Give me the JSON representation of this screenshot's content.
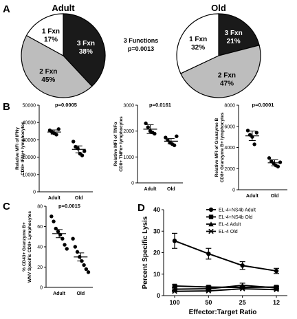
{
  "panels": {
    "A": "A",
    "B": "B",
    "C": "C",
    "D": "D"
  },
  "middle_text": {
    "functions": "3 Functions",
    "p": "p=0.0013"
  },
  "chart_data": [
    {
      "id": "A-adult",
      "type": "pie",
      "title": "Adult",
      "slices": [
        {
          "label": "3 Fxn",
          "value": 38,
          "pct": "38%",
          "color": "#1a1a1a",
          "text_color": "#ffffff"
        },
        {
          "label": "2 Fxn",
          "value": 45,
          "pct": "45%",
          "color": "#bdbdbd",
          "text_color": "#000000"
        },
        {
          "label": "1 Fxn",
          "value": 17,
          "pct": "17%",
          "color": "#ffffff",
          "text_color": "#000000"
        }
      ]
    },
    {
      "id": "A-old",
      "type": "pie",
      "title": "Old",
      "slices": [
        {
          "label": "3 Fxn",
          "value": 21,
          "pct": "21%",
          "color": "#1a1a1a",
          "text_color": "#ffffff"
        },
        {
          "label": "2 Fxn",
          "value": 47,
          "pct": "47%",
          "color": "#bdbdbd",
          "text_color": "#000000"
        },
        {
          "label": "1 Fxn",
          "value": 32,
          "pct": "32%",
          "color": "#ffffff",
          "text_color": "#000000"
        }
      ]
    },
    {
      "id": "B1",
      "type": "scatter",
      "p": "p=0.0005",
      "ylabel": [
        "Relative MFI of IFNγ",
        "CD8+ IFNγ+ lymphocytes"
      ],
      "ylim": [
        0,
        50000
      ],
      "yticks": [
        "0",
        "10000",
        "20000",
        "30000",
        "40000",
        "50000"
      ],
      "ytick_vals": [
        0,
        10000,
        20000,
        30000,
        40000,
        50000
      ],
      "categories": [
        "Adult",
        "Old"
      ],
      "groups": [
        {
          "points": [
            35500,
            34500,
            33800,
            33000,
            36200
          ],
          "mean": 34500,
          "sem": 1200
        },
        {
          "points": [
            29000,
            26000,
            25000,
            22000,
            21000,
            23500
          ],
          "mean": 24500,
          "sem": 2000
        }
      ]
    },
    {
      "id": "B2",
      "type": "scatter",
      "p": "p=0.0161",
      "ylabel": [
        "Relative MFI of TNFα",
        "CD8+ TNFα+ lymphocytes"
      ],
      "ylim": [
        0,
        3000
      ],
      "yticks": [
        "0",
        "1000",
        "2000",
        "3000"
      ],
      "ytick_vals": [
        0,
        1000,
        2000,
        3000
      ],
      "categories": [
        "Adult",
        "Old"
      ],
      "groups": [
        {
          "points": [
            2300,
            2150,
            2000,
            1950,
            1900
          ],
          "mean": 2075,
          "sem": 170
        },
        {
          "points": [
            1750,
            1650,
            1550,
            1500,
            1450,
            1800
          ],
          "mean": 1610,
          "sem": 100
        }
      ]
    },
    {
      "id": "B3",
      "type": "scatter",
      "p": "p=0.0001",
      "ylabel": [
        "Relative MFI of Granzyme B",
        "CD8+ Granzyme B+ lymphocytes"
      ],
      "ylim": [
        0,
        8000
      ],
      "yticks": [
        "0",
        "2000",
        "4000",
        "6000",
        "8000"
      ],
      "ytick_vals": [
        0,
        2000,
        4000,
        6000,
        8000
      ],
      "categories": [
        "Adult",
        "Old"
      ],
      "groups": [
        {
          "points": [
            5600,
            5200,
            5000,
            4300,
            5400
          ],
          "mean": 5100,
          "sem": 450
        },
        {
          "points": [
            3000,
            2700,
            2500,
            2300,
            2200,
            2600
          ],
          "mean": 2550,
          "sem": 280
        }
      ]
    },
    {
      "id": "C",
      "type": "scatter",
      "p": "p=0.0015",
      "ylabel": [
        "% CD43+ Granzyme B+",
        "WNV Specific CD8+ Lymphocytes"
      ],
      "ylim": [
        0,
        80
      ],
      "yticks": [
        "0",
        "20",
        "40",
        "60",
        "80"
      ],
      "ytick_vals": [
        0,
        20,
        40,
        60,
        80
      ],
      "categories": [
        "Adult",
        "Old"
      ],
      "groups": [
        {
          "points": [
            70,
            65,
            58,
            55,
            52,
            48,
            42,
            38
          ],
          "mean": 53,
          "sem": 4
        },
        {
          "points": [
            48,
            40,
            35,
            30,
            26,
            22,
            18,
            15
          ],
          "mean": 30,
          "sem": 4
        }
      ]
    },
    {
      "id": "D",
      "type": "line",
      "xlabel": "Effector:Target Ratio",
      "ylabel": "Percent Specific Lysis",
      "categories": [
        "100",
        "50",
        "25",
        "12"
      ],
      "ylim": [
        0,
        40
      ],
      "yticks": [
        "0",
        "10",
        "20",
        "30",
        "40"
      ],
      "ytick_vals": [
        0,
        10,
        20,
        30,
        40
      ],
      "legend": "top-right",
      "series": [
        {
          "name": "EL-4+NS4b Adult",
          "marker": "circle",
          "values": [
            25.5,
            19.5,
            14,
            11.5
          ],
          "err": [
            3.5,
            2.5,
            1.8,
            1.2
          ]
        },
        {
          "name": "EL-4+NS4b Old",
          "marker": "square",
          "values": [
            4.5,
            4.0,
            3.8,
            4.0
          ],
          "err": [
            0.5,
            0.5,
            0.5,
            0.5
          ]
        },
        {
          "name": "EL-4 Adult",
          "marker": "triangle",
          "values": [
            3.0,
            3.2,
            4.8,
            3.6
          ],
          "err": [
            0.5,
            0.5,
            1.0,
            0.5
          ]
        },
        {
          "name": "EL-4 Old",
          "marker": "x",
          "values": [
            2.0,
            2.2,
            3.2,
            2.8
          ],
          "err": [
            0.3,
            0.3,
            0.3,
            0.3
          ]
        }
      ]
    }
  ]
}
